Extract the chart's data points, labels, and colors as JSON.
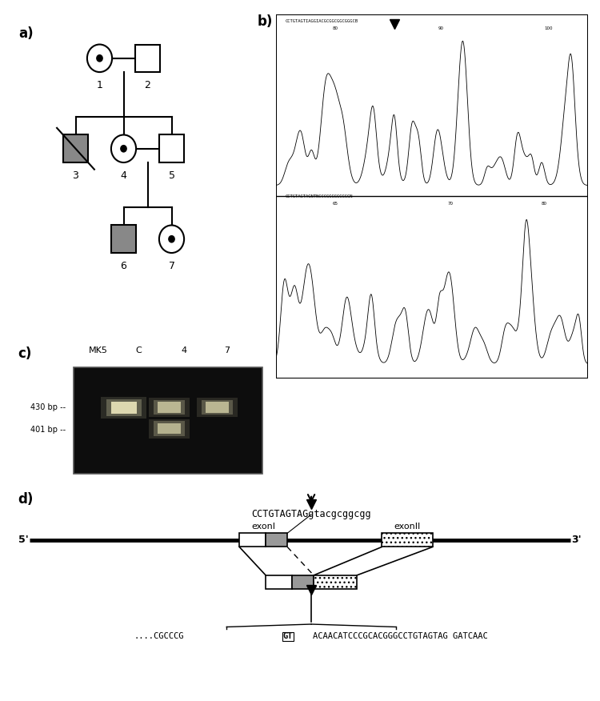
{
  "panel_a_label": "a)",
  "panel_b_label": "b)",
  "panel_c_label": "c)",
  "panel_d_label": "d)",
  "gel_lanes": [
    "MK5",
    "C",
    "4",
    "7"
  ],
  "size_markers": [
    "430 bp --",
    "401 bp --"
  ],
  "splicing_seq_top": "CCTGTAGTAGgtacgcggcgg",
  "exon1_label": "exonI",
  "exon2_label": "exonII",
  "seq_prefix": "....CGCCCG",
  "seq_gt": "GT",
  "seq_suffix": "ACAACATCCCGCACGGGCCTGTAGTAG GATCAAC",
  "bg_color": "#ffffff"
}
